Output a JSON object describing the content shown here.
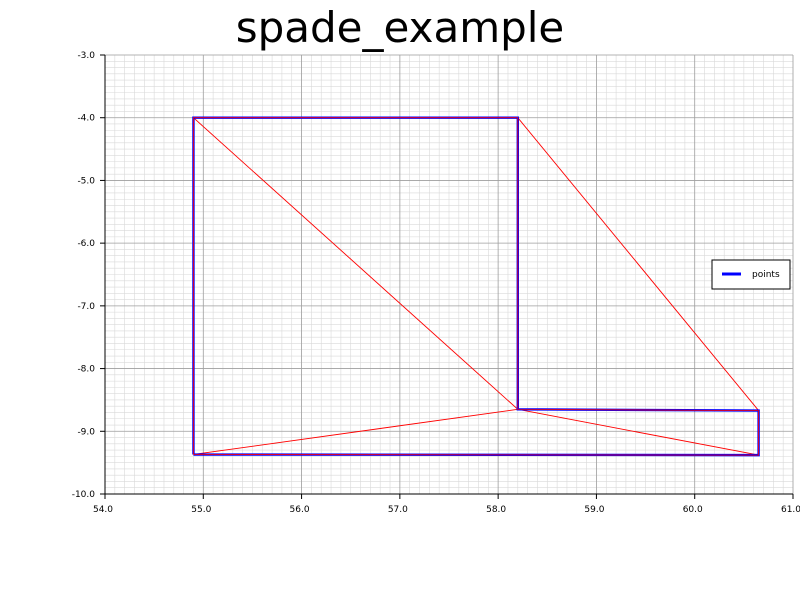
{
  "chart_data": {
    "type": "line",
    "title": "spade_example",
    "xlabel": "",
    "ylabel": "",
    "xlim": [
      54.0,
      61.0
    ],
    "ylim": [
      -10.0,
      -3.0
    ],
    "x_ticks": [
      "54.0",
      "55.0",
      "56.0",
      "57.0",
      "58.0",
      "59.0",
      "60.0",
      "61.0"
    ],
    "y_ticks": [
      "-3.0",
      "-4.0",
      "-5.0",
      "-6.0",
      "-7.0",
      "-8.0",
      "-9.0",
      "-10.0"
    ],
    "grid": true,
    "minor_grid": true,
    "legend_position": "right",
    "legend": [
      {
        "label": "points",
        "color": "#0000ff"
      }
    ],
    "series": [
      {
        "name": "points",
        "color": "#0000ff",
        "points": [
          [
            54.9,
            -9.37
          ],
          [
            60.65,
            -9.38
          ],
          [
            60.65,
            -8.67
          ],
          [
            58.2,
            -8.65
          ],
          [
            58.2,
            -4.0
          ],
          [
            54.9,
            -4.0
          ],
          [
            54.9,
            -9.37
          ]
        ]
      }
    ],
    "triangulation": {
      "color": "#ff0000",
      "edges": [
        [
          [
            54.9,
            -4.0
          ],
          [
            58.2,
            -4.0
          ]
        ],
        [
          [
            58.2,
            -4.0
          ],
          [
            58.2,
            -8.65
          ]
        ],
        [
          [
            54.9,
            -4.0
          ],
          [
            58.2,
            -8.65
          ]
        ],
        [
          [
            54.9,
            -4.0
          ],
          [
            54.9,
            -9.37
          ]
        ],
        [
          [
            54.9,
            -9.37
          ],
          [
            58.2,
            -8.65
          ]
        ],
        [
          [
            58.2,
            -4.0
          ],
          [
            60.65,
            -8.67
          ]
        ],
        [
          [
            58.2,
            -8.65
          ],
          [
            60.65,
            -8.67
          ]
        ],
        [
          [
            58.2,
            -8.65
          ],
          [
            60.65,
            -9.38
          ]
        ],
        [
          [
            60.65,
            -8.67
          ],
          [
            60.65,
            -9.38
          ]
        ],
        [
          [
            54.9,
            -9.37
          ],
          [
            60.65,
            -9.38
          ]
        ]
      ]
    }
  }
}
